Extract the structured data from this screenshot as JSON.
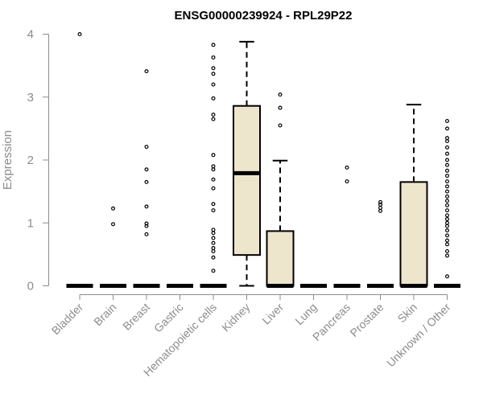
{
  "chart_data": {
    "type": "box",
    "title": "ENSG00000239924 - RPL29P22",
    "xlabel": "",
    "ylabel": "Expression",
    "ylim": [
      0,
      4
    ],
    "yticks": [
      "0",
      "1",
      "2",
      "3",
      "4"
    ],
    "box_fill": "#ede6cc",
    "categories": [
      "Bladder",
      "Brain",
      "Breast",
      "Gastric",
      "Hematopoietic cells",
      "Kidney",
      "Liver",
      "Lung",
      "Pancreas",
      "Prostate",
      "Skin",
      "Unknown / Other"
    ],
    "boxes": [
      {
        "category": "Bladder",
        "q1": 0,
        "median": 0,
        "q3": 0,
        "whisker_low": 0,
        "whisker_high": 0,
        "outliers": [
          4.0
        ]
      },
      {
        "category": "Brain",
        "q1": 0,
        "median": 0,
        "q3": 0,
        "whisker_low": 0,
        "whisker_high": 0,
        "outliers": [
          0.98,
          1.23
        ]
      },
      {
        "category": "Breast",
        "q1": 0,
        "median": 0,
        "q3": 0,
        "whisker_low": 0,
        "whisker_high": 0,
        "outliers": [
          0.82,
          0.95,
          0.99,
          1.26,
          1.65,
          1.85,
          2.21,
          3.41
        ]
      },
      {
        "category": "Gastric",
        "q1": 0,
        "median": 0,
        "q3": 0,
        "whisker_low": 0,
        "whisker_high": 0,
        "outliers": []
      },
      {
        "category": "Hematopoietic cells",
        "q1": 0,
        "median": 0,
        "q3": 0,
        "whisker_low": 0,
        "whisker_high": 0,
        "outliers": [
          0.24,
          0.45,
          0.55,
          0.6,
          0.68,
          0.76,
          0.84,
          0.89,
          1.2,
          1.3,
          1.55,
          1.69,
          1.85,
          1.9,
          2.08,
          2.65,
          2.72,
          2.98,
          3.2,
          3.37,
          3.46,
          3.63,
          3.83
        ]
      },
      {
        "category": "Kidney",
        "q1": 0.49,
        "median": 1.79,
        "q3": 2.86,
        "whisker_low": 0,
        "whisker_high": 3.88,
        "outliers": []
      },
      {
        "category": "Liver",
        "q1": 0,
        "median": 0,
        "q3": 0.87,
        "whisker_low": 0,
        "whisker_high": 1.99,
        "outliers": [
          2.55,
          2.83,
          3.04
        ]
      },
      {
        "category": "Lung",
        "q1": 0,
        "median": 0,
        "q3": 0,
        "whisker_low": 0,
        "whisker_high": 0,
        "outliers": []
      },
      {
        "category": "Pancreas",
        "q1": 0,
        "median": 0,
        "q3": 0,
        "whisker_low": 0,
        "whisker_high": 0,
        "outliers": [
          1.66,
          1.88
        ]
      },
      {
        "category": "Prostate",
        "q1": 0,
        "median": 0,
        "q3": 0,
        "whisker_low": 0,
        "whisker_high": 0,
        "outliers": [
          1.19,
          1.24,
          1.29,
          1.33
        ]
      },
      {
        "category": "Skin",
        "q1": 0,
        "median": 0,
        "q3": 1.65,
        "whisker_low": 0,
        "whisker_high": 2.88,
        "outliers": []
      },
      {
        "category": "Unknown / Other",
        "q1": 0,
        "median": 0,
        "q3": 0,
        "whisker_low": 0,
        "whisker_high": 0,
        "outliers": [
          0.15,
          0.48,
          0.55,
          0.66,
          0.72,
          0.8,
          0.88,
          0.95,
          1.0,
          1.06,
          1.12,
          1.2,
          1.28,
          1.35,
          1.42,
          1.5,
          1.58,
          1.66,
          1.75,
          1.83,
          1.92,
          2.0,
          2.1,
          2.2,
          2.3,
          2.35,
          2.5,
          2.62
        ]
      }
    ]
  }
}
